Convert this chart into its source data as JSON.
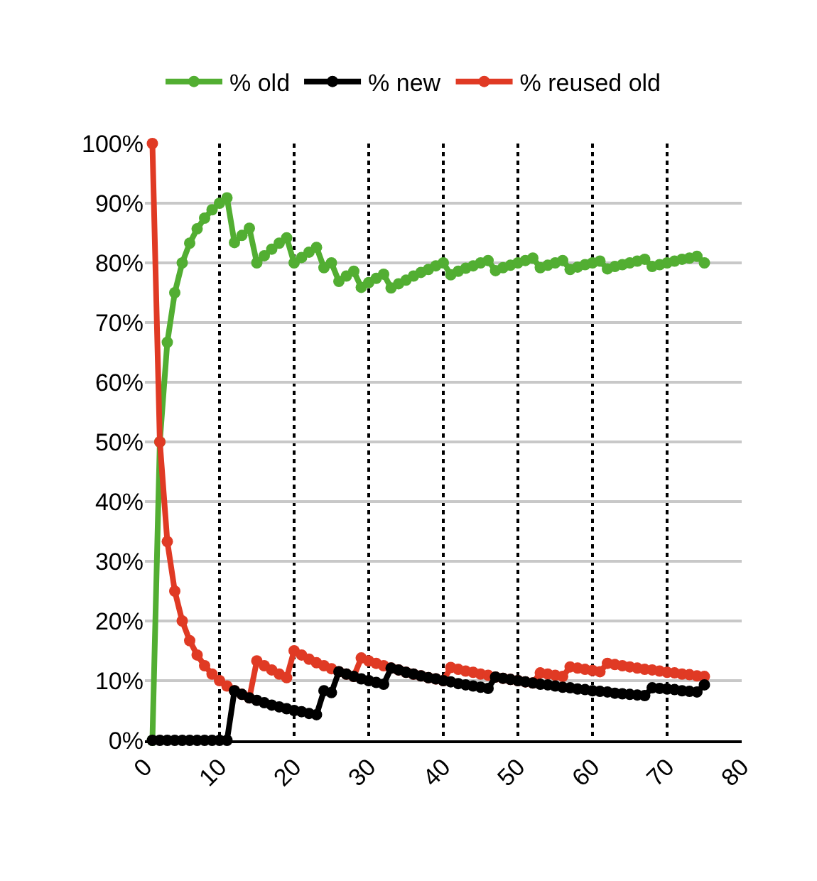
{
  "chart_data": {
    "type": "line",
    "x": [
      1,
      2,
      3,
      4,
      5,
      6,
      7,
      8,
      9,
      10,
      11,
      12,
      13,
      14,
      15,
      16,
      17,
      18,
      19,
      20,
      21,
      22,
      23,
      24,
      25,
      26,
      27,
      28,
      29,
      30,
      31,
      32,
      33,
      34,
      35,
      36,
      37,
      38,
      39,
      40,
      41,
      42,
      43,
      44,
      45,
      46,
      47,
      48,
      49,
      50,
      51,
      52,
      53,
      54,
      55,
      56,
      57,
      58,
      59,
      60,
      61,
      62,
      63,
      64,
      65,
      66,
      67,
      68,
      69,
      70,
      71,
      72,
      73,
      74,
      75
    ],
    "series": [
      {
        "name": "% old",
        "color": "#52ae32",
        "values": [
          0,
          50,
          66.7,
          75,
          80,
          83.3,
          85.7,
          87.5,
          88.9,
          90,
          90.9,
          83.4,
          84.6,
          85.8,
          80,
          81.2,
          82.3,
          83.3,
          84.2,
          80,
          80.9,
          81.8,
          82.6,
          79.2,
          80,
          76.9,
          77.8,
          78.6,
          75.9,
          76.7,
          77.4,
          78.1,
          75.8,
          76.5,
          77.1,
          77.8,
          78.4,
          78.9,
          79.5,
          80,
          78,
          78.6,
          79.1,
          79.5,
          80,
          80.4,
          78.7,
          79.2,
          79.6,
          80,
          80.4,
          80.8,
          79.2,
          79.6,
          80,
          80.4,
          78.9,
          79.3,
          79.7,
          80,
          80.3,
          79,
          79.4,
          79.7,
          80,
          80.3,
          80.6,
          79.4,
          79.7,
          80,
          80.3,
          80.6,
          80.8,
          81.1,
          80
        ]
      },
      {
        "name": "% new",
        "color": "#000000",
        "values": [
          0,
          0,
          0,
          0,
          0,
          0,
          0,
          0,
          0,
          0,
          0,
          8.3,
          7.7,
          7.1,
          6.7,
          6.3,
          5.9,
          5.6,
          5.3,
          5,
          4.8,
          4.5,
          4.3,
          8.3,
          8,
          11.5,
          11.1,
          10.7,
          10.3,
          10,
          9.7,
          9.4,
          12.1,
          11.8,
          11.4,
          11.1,
          10.8,
          10.5,
          10.3,
          10,
          9.8,
          9.5,
          9.3,
          9.1,
          8.9,
          8.7,
          10.6,
          10.4,
          10.2,
          10,
          9.8,
          9.6,
          9.4,
          9.3,
          9.1,
          8.9,
          8.8,
          8.6,
          8.5,
          8.3,
          8.2,
          8.1,
          7.9,
          7.8,
          7.7,
          7.6,
          7.5,
          8.8,
          8.7,
          8.6,
          8.5,
          8.3,
          8.2,
          8.1,
          9.3
        ]
      },
      {
        "name": "% reused old",
        "color": "#e03a24",
        "values": [
          100,
          50,
          33.3,
          25,
          20,
          16.7,
          14.3,
          12.5,
          11.1,
          10,
          9.1,
          8.3,
          7.7,
          7.1,
          13.3,
          12.5,
          11.8,
          11.1,
          10.5,
          15,
          14.3,
          13.6,
          13,
          12.5,
          12,
          11.5,
          11.1,
          10.7,
          13.8,
          13.3,
          12.9,
          12.5,
          12.1,
          11.8,
          11.4,
          11.1,
          10.8,
          10.5,
          10.3,
          10,
          12.2,
          11.9,
          11.6,
          11.4,
          11.1,
          10.9,
          10.6,
          10.4,
          10.2,
          10,
          9.8,
          9.6,
          11.3,
          11.1,
          10.9,
          10.7,
          12.3,
          12.1,
          11.9,
          11.7,
          11.5,
          12.9,
          12.7,
          12.5,
          12.3,
          12.1,
          11.9,
          11.8,
          11.6,
          11.4,
          11.3,
          11.1,
          11,
          10.8,
          10.7
        ]
      }
    ],
    "xlim": [
      0,
      80
    ],
    "xticks": [
      0,
      10,
      20,
      30,
      40,
      50,
      60,
      70,
      80
    ],
    "ylim": [
      0,
      100
    ],
    "yticks": [
      {
        "value": 0,
        "label": "0%"
      },
      {
        "value": 10,
        "label": "10%"
      },
      {
        "value": 20,
        "label": "20%"
      },
      {
        "value": 30,
        "label": "30%"
      },
      {
        "value": 40,
        "label": "40%"
      },
      {
        "value": 50,
        "label": "50%"
      },
      {
        "value": 60,
        "label": "60%"
      },
      {
        "value": 70,
        "label": "70%"
      },
      {
        "value": 80,
        "label": "80%"
      },
      {
        "value": 90,
        "label": "90%"
      },
      {
        "value": 100,
        "label": "100%"
      }
    ],
    "grid": true,
    "legend": "top",
    "marker": "circle",
    "line_style": "solid"
  }
}
